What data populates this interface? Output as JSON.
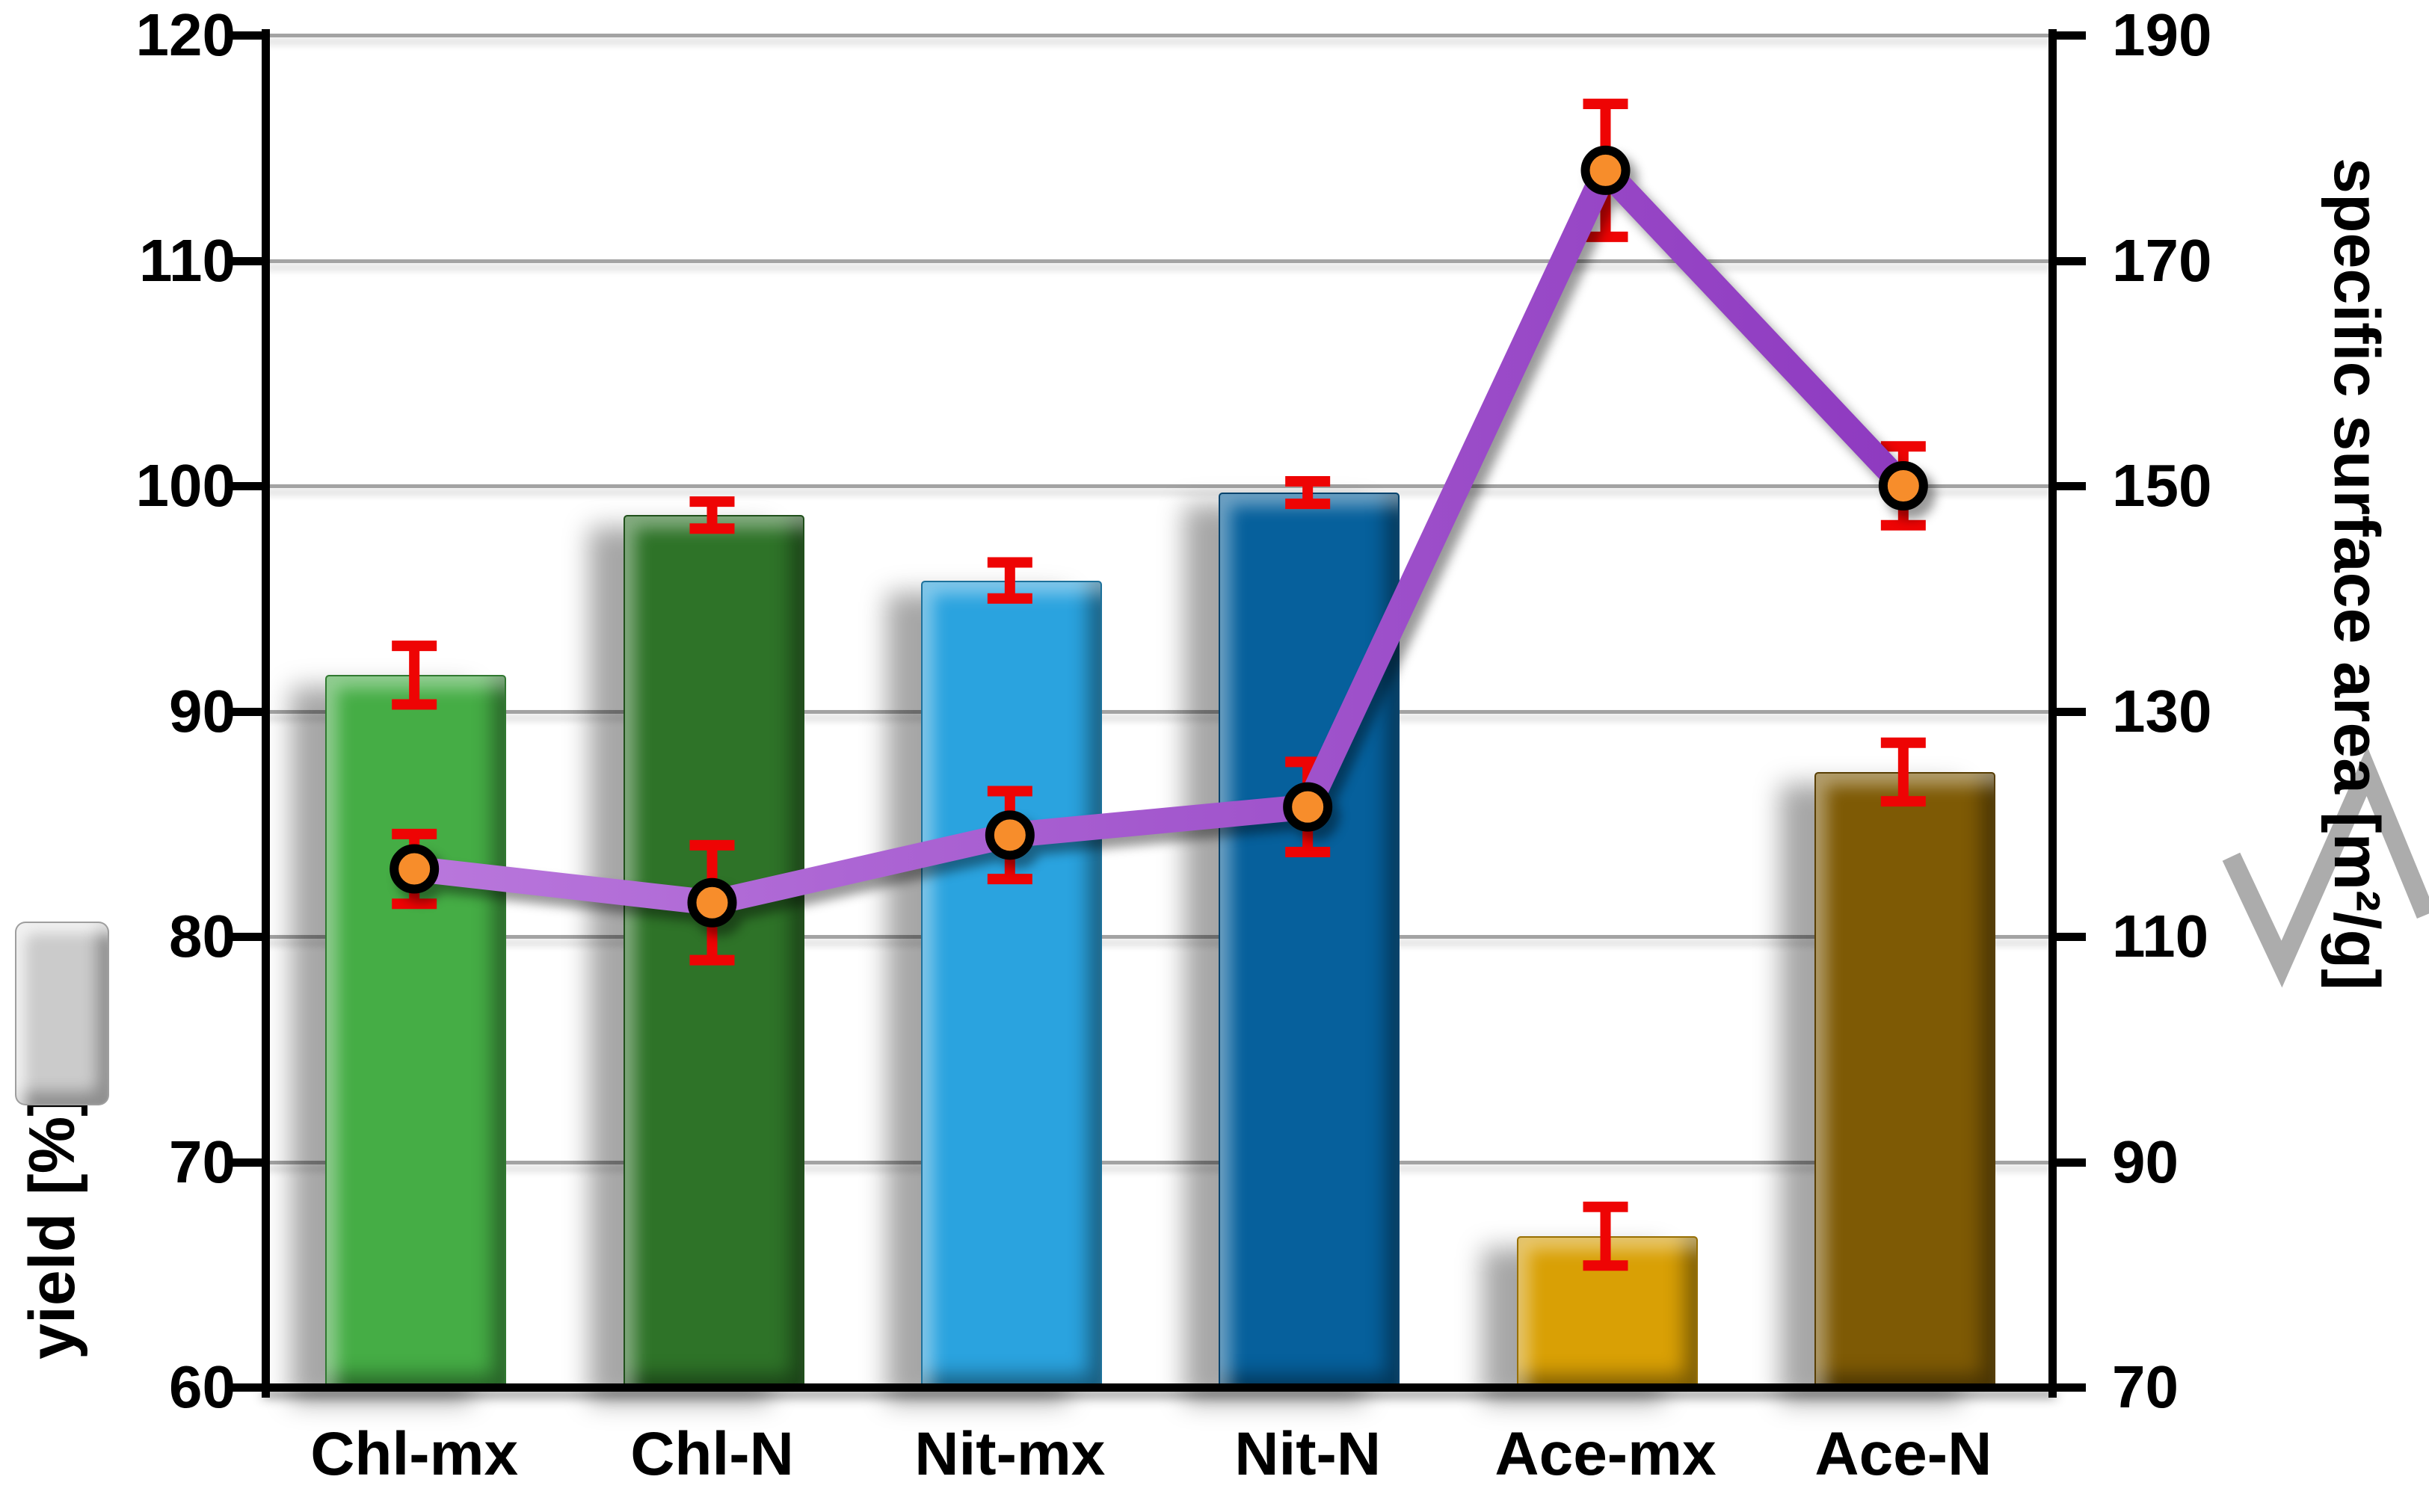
{
  "chart_data": {
    "type": "bar",
    "subtype": "combo-bar-line-dual-axis",
    "categories": [
      "Chl-mx",
      "Chl-N",
      "Nit-mx",
      "Nit-N",
      "Ace-mx",
      "Ace-N"
    ],
    "series": [
      {
        "name": "yield",
        "type": "bar",
        "axis": "left",
        "values": [
          91.6,
          98.7,
          95.8,
          99.7,
          66.7,
          87.3
        ],
        "errors": [
          1.3,
          0.6,
          0.8,
          0.5,
          1.3,
          1.3
        ],
        "bar_colors": [
          "#45AD45",
          "#2E7328",
          "#2AA3DF",
          "#06609C",
          "#D9A005",
          "#7E5A05"
        ]
      },
      {
        "name": "specific surface area",
        "type": "line",
        "axis": "right",
        "values": [
          116,
          113,
          119,
          121.5,
          178,
          150
        ],
        "errors": [
          3.1,
          5.1,
          3.9,
          4.0,
          5.9,
          3.5
        ],
        "line_color": "#8E3AC0",
        "line_color_light": "#B977DC",
        "marker_fill": "#F78D2B",
        "marker_stroke": "#000000"
      }
    ],
    "left_axis": {
      "title": "yield [%]",
      "min": 60,
      "max": 120,
      "tick_step": 10,
      "tick_labels": [
        "120",
        "110",
        "100",
        "90",
        "80",
        "70",
        "60"
      ]
    },
    "right_axis": {
      "title": "specific surface area [m²/g]",
      "min": 70,
      "max": 190,
      "tick_step": 20,
      "tick_labels": [
        "190",
        "170",
        "150",
        "130",
        "110",
        "90",
        "70"
      ]
    },
    "grid": true,
    "legend_position": "outside-left-and-right",
    "error_bar_color": "#EE0404",
    "gridline_color": "#A3A3A3",
    "legend": {
      "bar_swatch_color": "#CBCBCB",
      "line_glyph_color": "#ACACAC"
    }
  }
}
